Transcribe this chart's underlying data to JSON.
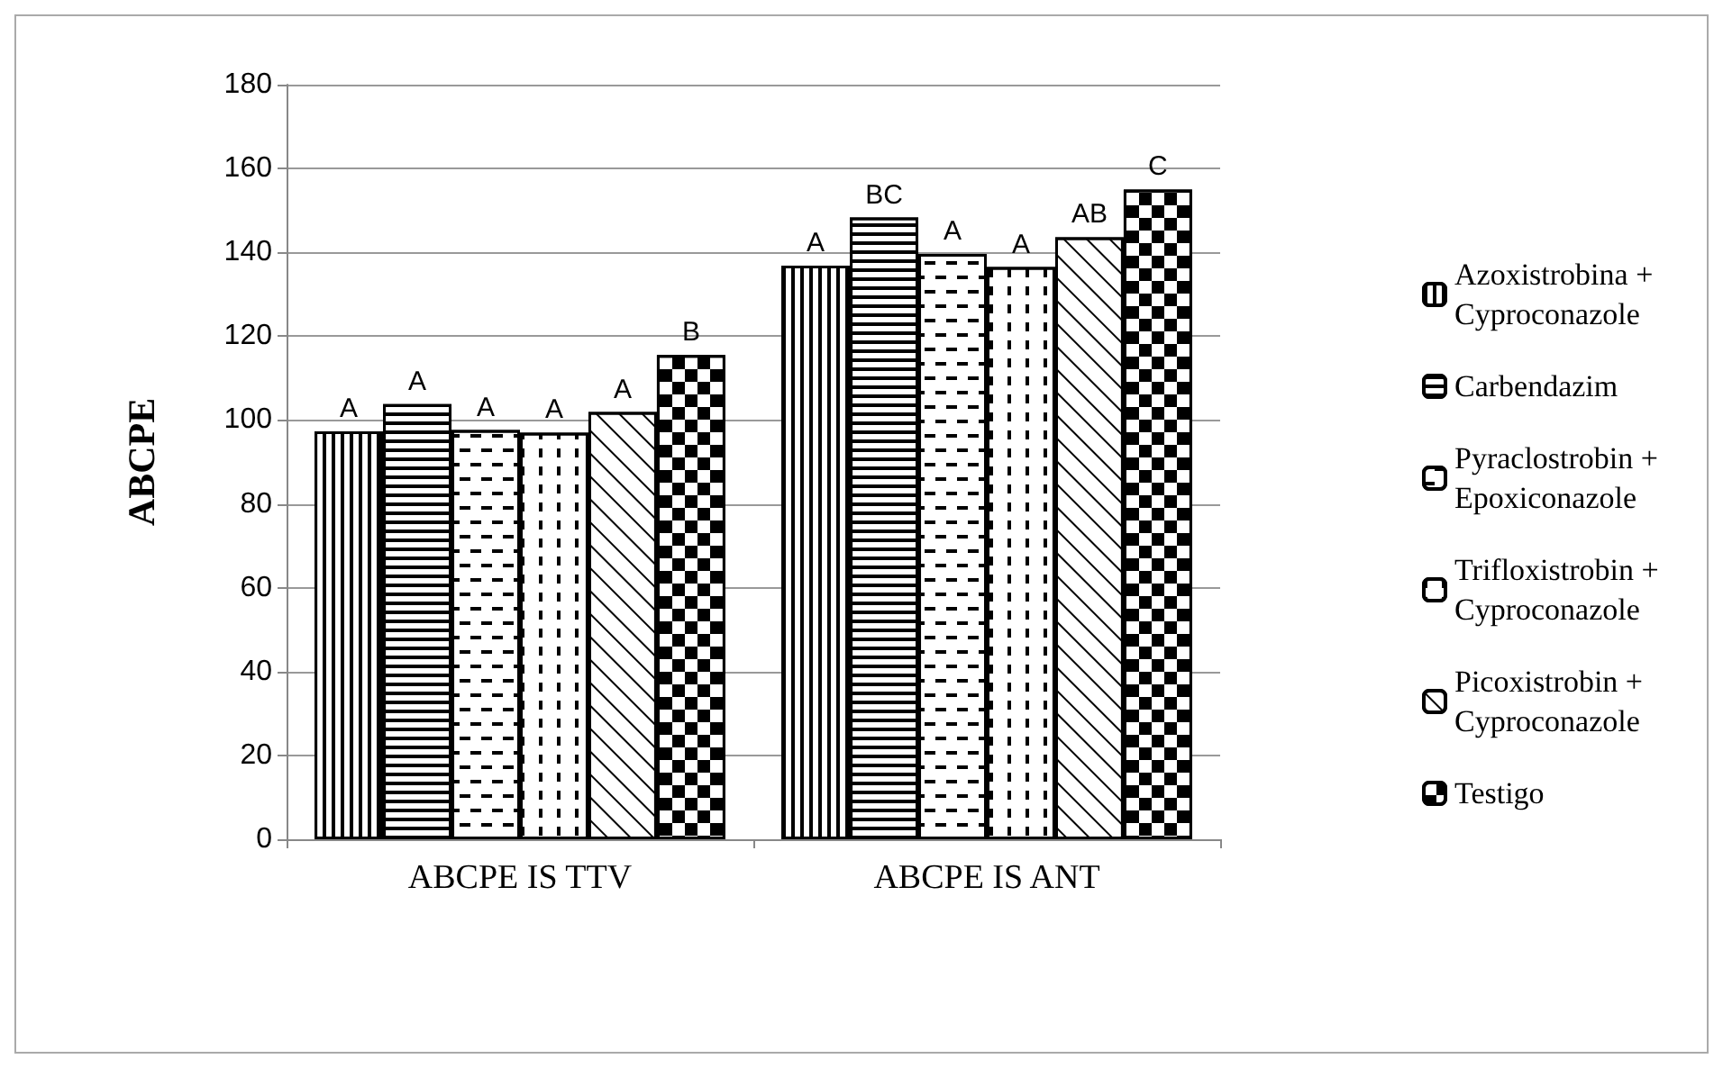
{
  "chart_data": {
    "type": "bar",
    "ylabel": "ABCPE",
    "categories": [
      "ABCPE IS TTV",
      "ABCPE IS ANT"
    ],
    "series": [
      {
        "name": "Azoxistrobina + Cyproconazole",
        "color": "#000000",
        "values": [
          97.3,
          136.8
        ],
        "value_labels": [
          "A",
          "A"
        ]
      },
      {
        "name": "Carbendazim",
        "color": "#000000",
        "values": [
          103.8,
          148.3
        ],
        "value_labels": [
          "A",
          "BC"
        ]
      },
      {
        "name": "Pyraclostrobin + Epoxiconazole",
        "color": "#000000",
        "values": [
          97.6,
          139.6
        ],
        "value_labels": [
          "A",
          "A"
        ]
      },
      {
        "name": "Trifloxistrobin + Cyproconazole",
        "color": "#000000",
        "values": [
          97,
          136.5
        ],
        "value_labels": [
          "A",
          "A"
        ]
      },
      {
        "name": "Picoxistrobin + Cyproconazole",
        "color": "#000000",
        "values": [
          101.9,
          143.6
        ],
        "value_labels": [
          "A",
          "AB"
        ]
      },
      {
        "name": "Testigo",
        "color": "#000000",
        "values": [
          115.5,
          155
        ],
        "value_labels": [
          "B",
          "C"
        ]
      }
    ],
    "ylim": [
      0,
      180
    ],
    "yticks": [
      0,
      20,
      40,
      60,
      80,
      100,
      120,
      140,
      160,
      180
    ],
    "grid": "y",
    "legend": "right"
  }
}
